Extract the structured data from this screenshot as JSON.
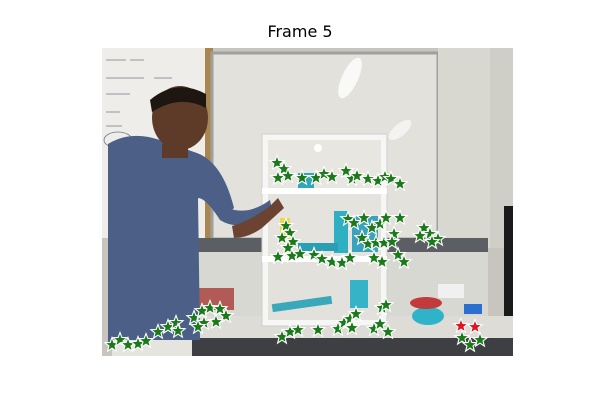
{
  "figure": {
    "title": "Frame 5"
  },
  "scene": {
    "description_colors": {
      "wall": "#c9c8c0",
      "whiteboard": "#e8e6e0",
      "shelf": "#f4f4f2",
      "shirt": "#4a5f86",
      "counter": "#5b5e62",
      "desk": "#dcdcd6",
      "star_green": "#1a7a1a",
      "star_red": "#e0141e"
    }
  },
  "markers": {
    "green_count": 86,
    "red_count": 2
  }
}
